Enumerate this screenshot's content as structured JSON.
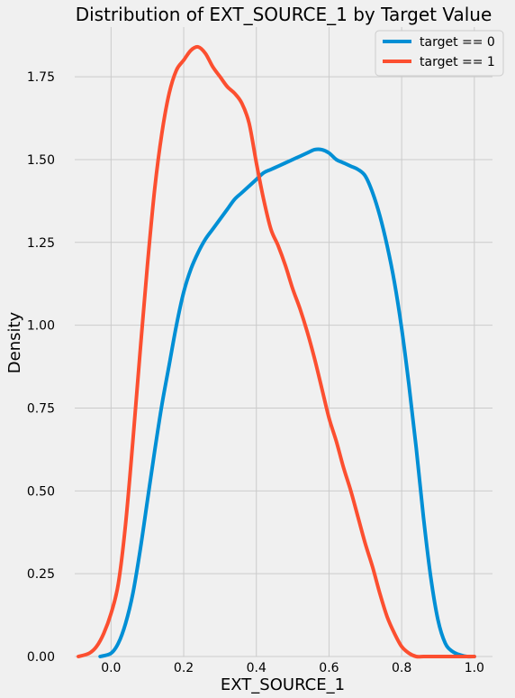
{
  "chart_data": {
    "type": "line",
    "title": "Distribution of EXT_SOURCE_1 by Target Value",
    "xlabel": "EXT_SOURCE_1",
    "ylabel": "Density",
    "xlim": [
      -0.1,
      1.05
    ],
    "ylim": [
      0,
      1.9
    ],
    "xticks": [
      0.0,
      0.2,
      0.4,
      0.6,
      0.8,
      1.0
    ],
    "xtick_labels": [
      "0.0",
      "0.2",
      "0.4",
      "0.6",
      "0.8",
      "1.0"
    ],
    "yticks": [
      0.0,
      0.25,
      0.5,
      0.75,
      1.0,
      1.25,
      1.5,
      1.75
    ],
    "ytick_labels": [
      "0.00",
      "0.25",
      "0.50",
      "0.75",
      "1.00",
      "1.25",
      "1.50",
      "1.75"
    ],
    "grid": true,
    "legend_position": "top-right",
    "series": [
      {
        "name": "target == 0",
        "color": "#008fd5",
        "x": [
          -0.03,
          0.0,
          0.02,
          0.04,
          0.06,
          0.08,
          0.1,
          0.12,
          0.14,
          0.16,
          0.18,
          0.2,
          0.22,
          0.24,
          0.26,
          0.28,
          0.3,
          0.32,
          0.34,
          0.36,
          0.38,
          0.4,
          0.42,
          0.44,
          0.46,
          0.48,
          0.5,
          0.52,
          0.54,
          0.56,
          0.58,
          0.6,
          0.62,
          0.64,
          0.66,
          0.68,
          0.7,
          0.72,
          0.74,
          0.76,
          0.78,
          0.8,
          0.82,
          0.84,
          0.86,
          0.88,
          0.9,
          0.92,
          0.94,
          0.96,
          0.98,
          1.0
        ],
        "y": [
          0.0,
          0.01,
          0.04,
          0.1,
          0.19,
          0.32,
          0.47,
          0.62,
          0.76,
          0.88,
          1.0,
          1.1,
          1.17,
          1.22,
          1.26,
          1.29,
          1.32,
          1.35,
          1.38,
          1.4,
          1.42,
          1.44,
          1.46,
          1.47,
          1.48,
          1.49,
          1.5,
          1.51,
          1.52,
          1.53,
          1.53,
          1.52,
          1.5,
          1.49,
          1.48,
          1.47,
          1.45,
          1.4,
          1.33,
          1.24,
          1.13,
          0.99,
          0.82,
          0.63,
          0.42,
          0.24,
          0.11,
          0.04,
          0.015,
          0.005,
          0.0,
          0.0
        ]
      },
      {
        "name": "target == 1",
        "color": "#fc4f30",
        "x": [
          -0.09,
          -0.06,
          -0.04,
          -0.02,
          0.0,
          0.02,
          0.04,
          0.06,
          0.08,
          0.1,
          0.12,
          0.14,
          0.16,
          0.18,
          0.2,
          0.22,
          0.24,
          0.26,
          0.28,
          0.3,
          0.32,
          0.34,
          0.36,
          0.38,
          0.4,
          0.42,
          0.44,
          0.46,
          0.48,
          0.5,
          0.52,
          0.54,
          0.56,
          0.58,
          0.6,
          0.62,
          0.64,
          0.66,
          0.68,
          0.7,
          0.72,
          0.74,
          0.76,
          0.78,
          0.8,
          0.82,
          0.84,
          0.86,
          0.88,
          0.9,
          0.92,
          0.94,
          0.96,
          1.0
        ],
        "y": [
          0.0,
          0.01,
          0.03,
          0.07,
          0.13,
          0.22,
          0.4,
          0.65,
          0.92,
          1.18,
          1.41,
          1.58,
          1.7,
          1.77,
          1.8,
          1.83,
          1.84,
          1.82,
          1.78,
          1.75,
          1.72,
          1.7,
          1.67,
          1.61,
          1.49,
          1.38,
          1.29,
          1.24,
          1.18,
          1.11,
          1.05,
          0.98,
          0.9,
          0.81,
          0.72,
          0.65,
          0.57,
          0.5,
          0.42,
          0.34,
          0.27,
          0.19,
          0.12,
          0.07,
          0.03,
          0.01,
          0.0,
          0.0,
          0.0,
          0.0,
          0.0,
          0.0,
          0.0,
          0.0
        ]
      }
    ]
  }
}
